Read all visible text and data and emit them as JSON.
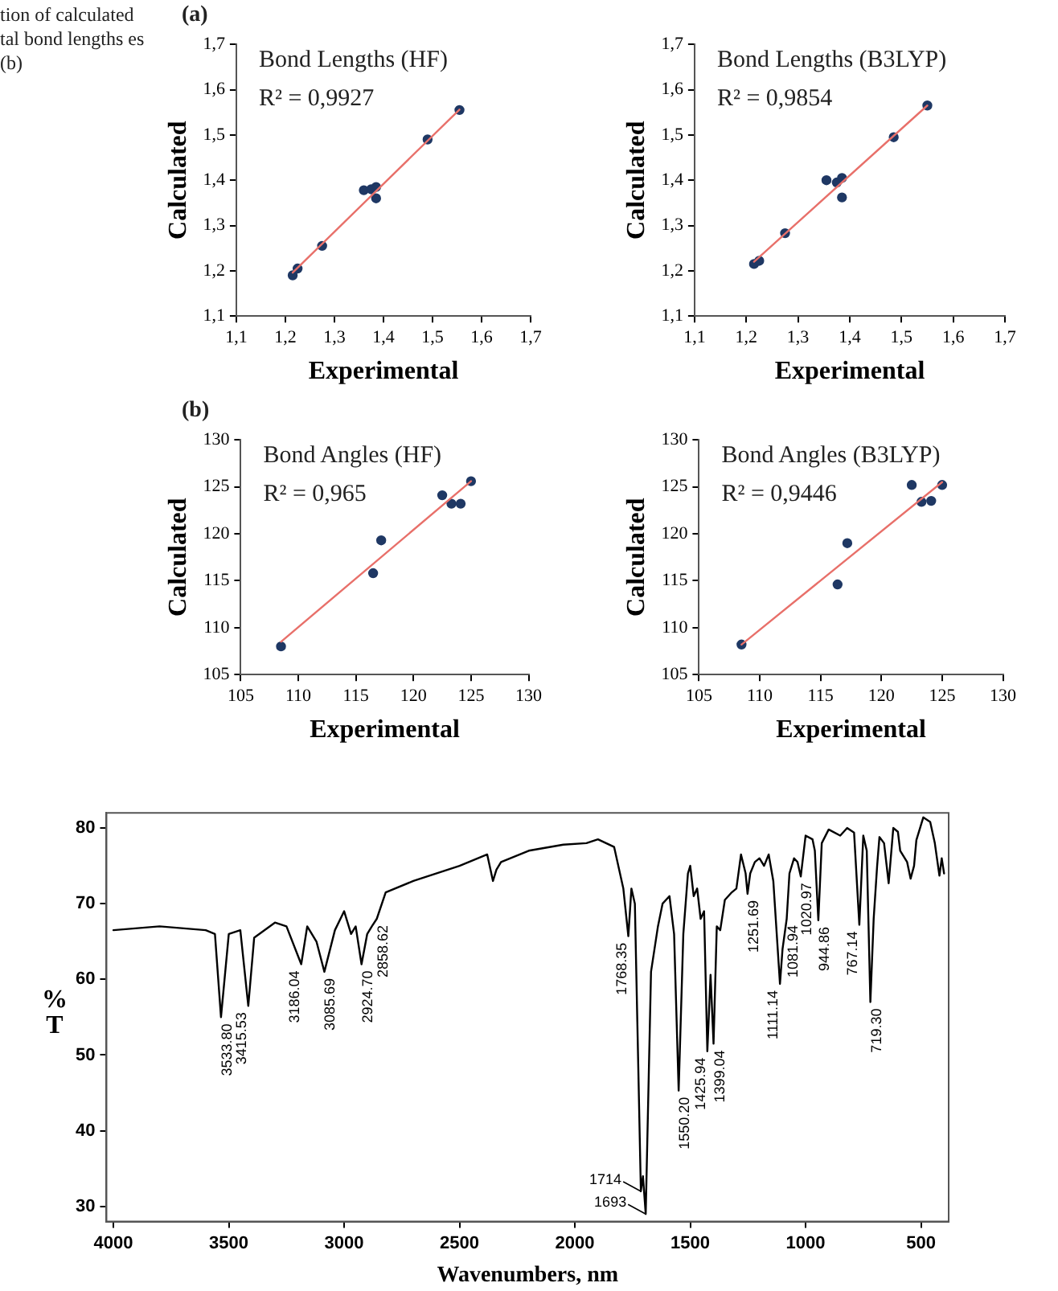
{
  "chart_data": [
    {
      "type": "scatter",
      "title": "Bond Lengths (HF)",
      "subtitle": "R² = 0,9927",
      "xlabel": "Experimental",
      "ylabel": "Calculated",
      "annotations": [
        "tion of calculated tal bond lengths es (b)",
        "(a)"
      ],
      "marker": "circle",
      "xlim": [
        1.1,
        1.7
      ],
      "ylim": [
        1.1,
        1.7
      ],
      "xticks": [
        {
          "value": 1.1,
          "label": "1,1"
        },
        {
          "value": 1.2,
          "label": "1,2"
        },
        {
          "value": 1.3,
          "label": "1,3"
        },
        {
          "value": 1.4,
          "label": "1,4"
        },
        {
          "value": 1.5,
          "label": "1,5"
        },
        {
          "value": 1.6,
          "label": "1,6"
        },
        {
          "value": 1.7,
          "label": "1,7"
        }
      ],
      "yticks": [
        {
          "value": 1.1,
          "label": "1,1"
        },
        {
          "value": 1.2,
          "label": "1,2"
        },
        {
          "value": 1.3,
          "label": "1,3"
        },
        {
          "value": 1.4,
          "label": "1,4"
        },
        {
          "value": 1.5,
          "label": "1,5"
        },
        {
          "value": 1.6,
          "label": "1,6"
        },
        {
          "value": 1.7,
          "label": "1,7"
        }
      ],
      "series": [
        {
          "type": "scatter",
          "color": "#1f3864",
          "x": [
            1.215,
            1.225,
            1.275,
            1.36,
            1.375,
            1.385,
            1.385,
            1.49,
            1.555
          ],
          "values": [
            1.19,
            1.205,
            1.255,
            1.378,
            1.38,
            1.385,
            1.36,
            1.49,
            1.555
          ]
        },
        {
          "type": "line",
          "marker": "none",
          "color": "#e8706a",
          "x": [
            1.215,
            1.555
          ],
          "values": [
            1.196,
            1.556
          ]
        }
      ]
    },
    {
      "type": "scatter",
      "title": "Bond Lengths (B3LYP)",
      "subtitle": "R² = 0,9854",
      "xlabel": "Experimental",
      "ylabel": "Calculated",
      "marker": "circle",
      "xlim": [
        1.1,
        1.7
      ],
      "ylim": [
        1.1,
        1.7
      ],
      "xticks": [
        {
          "value": 1.1,
          "label": "1,1"
        },
        {
          "value": 1.2,
          "label": "1,2"
        },
        {
          "value": 1.3,
          "label": "1,3"
        },
        {
          "value": 1.4,
          "label": "1,4"
        },
        {
          "value": 1.5,
          "label": "1,5"
        },
        {
          "value": 1.6,
          "label": "1,6"
        },
        {
          "value": 1.7,
          "label": "1,7"
        }
      ],
      "yticks": [
        {
          "value": 1.1,
          "label": "1,1"
        },
        {
          "value": 1.2,
          "label": "1,2"
        },
        {
          "value": 1.3,
          "label": "1,3"
        },
        {
          "value": 1.4,
          "label": "1,4"
        },
        {
          "value": 1.5,
          "label": "1,5"
        },
        {
          "value": 1.6,
          "label": "1,6"
        },
        {
          "value": 1.7,
          "label": "1,7"
        }
      ],
      "series": [
        {
          "type": "scatter",
          "color": "#1f3864",
          "x": [
            1.215,
            1.225,
            1.275,
            1.355,
            1.375,
            1.385,
            1.385,
            1.485,
            1.55
          ],
          "values": [
            1.215,
            1.222,
            1.283,
            1.4,
            1.395,
            1.405,
            1.362,
            1.495,
            1.565
          ]
        },
        {
          "type": "line",
          "marker": "none",
          "color": "#e8706a",
          "x": [
            1.215,
            1.55
          ],
          "values": [
            1.22,
            1.565
          ]
        }
      ]
    },
    {
      "type": "scatter",
      "title": "Bond Angles (HF)",
      "subtitle": "R² = 0,965",
      "xlabel": "Experimental",
      "ylabel": "Calculated",
      "annotations": [
        "(b)"
      ],
      "marker": "circle",
      "xlim": [
        105,
        130
      ],
      "ylim": [
        105,
        130
      ],
      "xticks": [
        105,
        110,
        115,
        120,
        125,
        130
      ],
      "yticks": [
        105,
        110,
        115,
        120,
        125,
        130
      ],
      "series": [
        {
          "type": "scatter",
          "color": "#1f3864",
          "x": [
            108.5,
            116.5,
            117.2,
            122.5,
            123.3,
            124.1,
            125
          ],
          "values": [
            108,
            115.8,
            119.3,
            124.1,
            123.2,
            123.2,
            125.6
          ]
        },
        {
          "type": "line",
          "marker": "none",
          "color": "#e8706a",
          "x": [
            108.5,
            125
          ],
          "values": [
            108.5,
            125.6
          ]
        }
      ]
    },
    {
      "type": "scatter",
      "title": "Bond Angles (B3LYP)",
      "subtitle": "R² = 0,9446",
      "xlabel": "Experimental",
      "ylabel": "Calculated",
      "marker": "circle",
      "xlim": [
        105,
        130
      ],
      "ylim": [
        105,
        130
      ],
      "xticks": [
        105,
        110,
        115,
        120,
        125,
        130
      ],
      "yticks": [
        105,
        110,
        115,
        120,
        125,
        130
      ],
      "series": [
        {
          "type": "scatter",
          "color": "#1f3864",
          "x": [
            108.5,
            116.4,
            117.2,
            122.5,
            123.3,
            124.1,
            125
          ],
          "values": [
            108.2,
            114.6,
            119,
            125.2,
            123.4,
            123.5,
            125.2
          ]
        },
        {
          "type": "line",
          "marker": "none",
          "color": "#e8706a",
          "x": [
            108.5,
            125
          ],
          "values": [
            108.2,
            125.5
          ]
        }
      ]
    },
    {
      "type": "line",
      "xlabel": "Wavenumbers, nm",
      "ylabel": "% T",
      "marker": "none",
      "xlim": [
        4030,
        380
      ],
      "ylim": [
        28,
        82
      ],
      "xticks": [
        4000,
        3500,
        3000,
        2500,
        2000,
        1500,
        1000,
        500
      ],
      "yticks": [
        30,
        40,
        50,
        60,
        70,
        80
      ],
      "series": [
        {
          "color": "#000000",
          "x": [
            4000,
            3800,
            3600,
            3560,
            3533.8,
            3500,
            3450,
            3415.5,
            3390,
            3300,
            3250,
            3186,
            3160,
            3120,
            3085.7,
            3040,
            3000,
            2970,
            2950,
            2924.7,
            2900,
            2880,
            2858.6,
            2820,
            2700,
            2500,
            2380,
            2355,
            2340,
            2320,
            2200,
            2050,
            1950,
            1900,
            1830,
            1790,
            1768.35,
            1755,
            1740,
            1714,
            1705,
            1693,
            1670,
            1640,
            1620,
            1590,
            1570,
            1550.2,
            1530,
            1510,
            1500,
            1485,
            1470,
            1455,
            1440,
            1425.9,
            1412,
            1399.04,
            1385,
            1370,
            1350,
            1320,
            1300,
            1280,
            1260,
            1251.69,
            1240,
            1220,
            1200,
            1180,
            1160,
            1140,
            1111.14,
            1100,
            1081.94,
            1070,
            1050,
            1035,
            1020.97,
            1000,
            970,
            960,
            944.86,
            930,
            900,
            850,
            820,
            790,
            767.14,
            750,
            735,
            719.3,
            705,
            690,
            680,
            660,
            640,
            620,
            600,
            590,
            560,
            545,
            530,
            520,
            490,
            460,
            440,
            420,
            410,
            400
          ],
          "values": [
            66.5,
            67,
            66.5,
            66,
            55,
            66,
            66.5,
            56.5,
            65.5,
            67.5,
            67,
            62,
            67,
            65,
            61,
            66.5,
            69,
            66,
            67,
            62,
            66,
            67,
            68,
            71.5,
            73,
            75,
            76.5,
            73,
            74.5,
            75.5,
            77,
            77.8,
            78,
            78.5,
            77.5,
            72,
            65.7,
            72,
            70,
            32,
            34,
            29,
            61,
            67,
            70,
            71,
            66,
            45.3,
            66,
            74,
            75,
            71,
            72,
            68,
            69,
            50.5,
            60.6,
            51.5,
            67,
            66.5,
            70.5,
            71.5,
            72,
            76.5,
            74,
            71.3,
            74,
            75.5,
            76,
            75,
            76.5,
            73,
            59.4,
            64,
            68,
            74,
            76,
            75.5,
            73.6,
            79,
            78.5,
            77,
            67.8,
            78,
            79.8,
            79,
            80,
            79.4,
            67.2,
            79,
            77,
            57,
            68,
            75,
            78.8,
            78,
            72.7,
            80,
            79.5,
            77,
            75.5,
            73.3,
            75,
            78.4,
            81.4,
            80.8,
            78,
            73.7,
            76,
            74
          ]
        }
      ],
      "annotations": [
        {
          "text": "3533.80",
          "x": 3533.8,
          "y": 55
        },
        {
          "text": "3415.53",
          "x": 3415.53,
          "y": 56.5
        },
        {
          "text": "3186.04",
          "x": 3186.04,
          "y": 62
        },
        {
          "text": "3085.69",
          "x": 3085.69,
          "y": 61
        },
        {
          "text": "2924.70",
          "x": 2924.7,
          "y": 62
        },
        {
          "text": "2858.62",
          "x": 2858.62,
          "y": 68
        },
        {
          "text": "1768.35",
          "x": 1768.35,
          "y": 65.7
        },
        {
          "text": "1714",
          "x": 1714,
          "y": 32
        },
        {
          "text": "1693",
          "x": 1693,
          "y": 29
        },
        {
          "text": "1550.20",
          "x": 1550.2,
          "y": 45.3
        },
        {
          "text": "1425.94",
          "x": 1425.94,
          "y": 50.5
        },
        {
          "text": "1399.04",
          "x": 1399.04,
          "y": 51.5
        },
        {
          "text": "1251.69",
          "x": 1251.69,
          "y": 71.3
        },
        {
          "text": "1111.14",
          "x": 1111.14,
          "y": 59.4
        },
        {
          "text": "1081.94",
          "x": 1081.94,
          "y": 68
        },
        {
          "text": "1020.97",
          "x": 1020.97,
          "y": 73.6
        },
        {
          "text": "944.86",
          "x": 944.86,
          "y": 67.8
        },
        {
          "text": "767.14",
          "x": 767.14,
          "y": 67.2
        },
        {
          "text": "719.30",
          "x": 719.3,
          "y": 57
        }
      ]
    }
  ]
}
